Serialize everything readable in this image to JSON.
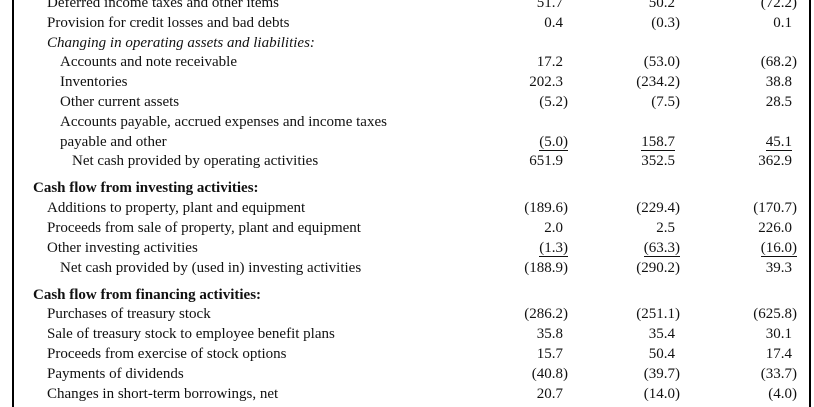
{
  "rows": [
    {
      "label": "Deferred income taxes and other items",
      "level": 1,
      "values": [
        "51.7",
        "50.2",
        "(72.2)"
      ],
      "top": -7
    },
    {
      "label": "Provision for credit losses and bad debts",
      "level": 1,
      "values": [
        "0.4",
        "(0.3)",
        "0.1"
      ]
    },
    {
      "label": "Changing in operating assets and liabilities:",
      "level": 1,
      "italic": true,
      "values": []
    },
    {
      "label": "Accounts and note receivable",
      "level": 2,
      "values": [
        "17.2",
        "(53.0)",
        "(68.2)"
      ]
    },
    {
      "label": "Inventories",
      "level": 2,
      "values": [
        "202.3",
        "(234.2)",
        "38.8"
      ]
    },
    {
      "label": "Other current assets",
      "level": 2,
      "values": [
        "(5.2)",
        "(7.5)",
        "28.5"
      ]
    },
    {
      "label": "Accounts payable, accrued expenses and income taxes",
      "level": 2,
      "values": []
    },
    {
      "label": "payable and other",
      "level": 2,
      "values": [
        "(5.0)",
        "158.7",
        "45.1"
      ],
      "underline": true
    },
    {
      "label": "Net cash provided by operating activities",
      "level": 3,
      "values": [
        "651.9",
        "352.5",
        "362.9"
      ]
    },
    {
      "label": "Cash flow from investing activities:",
      "level": 0,
      "values": [],
      "gap": true
    },
    {
      "label": "Additions to property, plant and equipment",
      "level": 1,
      "values": [
        "(189.6)",
        "(229.4)",
        "(170.7)"
      ]
    },
    {
      "label": "Proceeds from sale of property, plant and equipment",
      "level": 1,
      "values": [
        "2.0",
        "2.5",
        "226.0"
      ]
    },
    {
      "label": "Other investing activities",
      "level": 1,
      "values": [
        "(1.3)",
        "(63.3)",
        "(16.0)"
      ],
      "underline": true
    },
    {
      "label": "Net cash provided by (used in) investing activities",
      "level": 2,
      "values": [
        "(188.9)",
        "(290.2)",
        "39.3"
      ]
    },
    {
      "label": "Cash flow from financing activities:",
      "level": 0,
      "values": [],
      "gap": true
    },
    {
      "label": "Purchases of treasury stock",
      "level": 1,
      "values": [
        "(286.2)",
        "(251.1)",
        "(625.8)"
      ]
    },
    {
      "label": "Sale of treasury stock to employee benefit plans",
      "level": 1,
      "values": [
        "35.8",
        "35.4",
        "30.1"
      ]
    },
    {
      "label": "Proceeds from exercise of stock options",
      "level": 1,
      "values": [
        "15.7",
        "50.4",
        "17.4"
      ]
    },
    {
      "label": "Payments of dividends",
      "level": 1,
      "values": [
        "(40.8)",
        "(39.7)",
        "(33.7)"
      ]
    },
    {
      "label": "Changes in short-term borrowings, net",
      "level": 1,
      "values": [
        "20.7",
        "(14.0)",
        "(4.0)"
      ]
    }
  ]
}
